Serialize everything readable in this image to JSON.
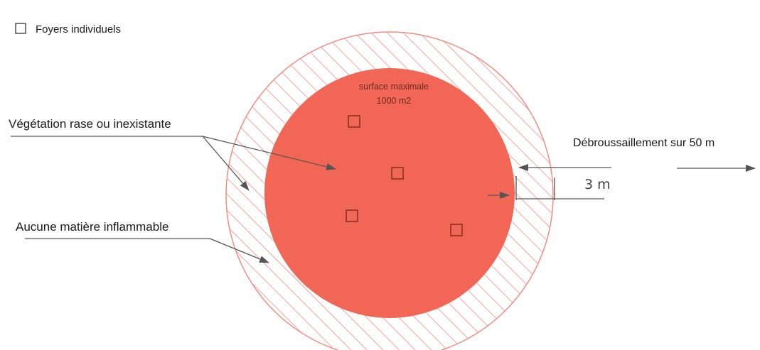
{
  "legend": {
    "label": "Foyers individuels"
  },
  "zone": {
    "title_line1": "surface maximale",
    "title_line2": "1000 m2"
  },
  "labels": {
    "vegetation": "Végétation rase ou inexistante",
    "no_flammable": "Aucune matière inflammable",
    "clearing": "Débroussaillement sur 50 m",
    "distance": "3 m"
  },
  "colors": {
    "zone_fill": "#f26655",
    "hatch": "#f08d84",
    "arrow": "#555555"
  }
}
